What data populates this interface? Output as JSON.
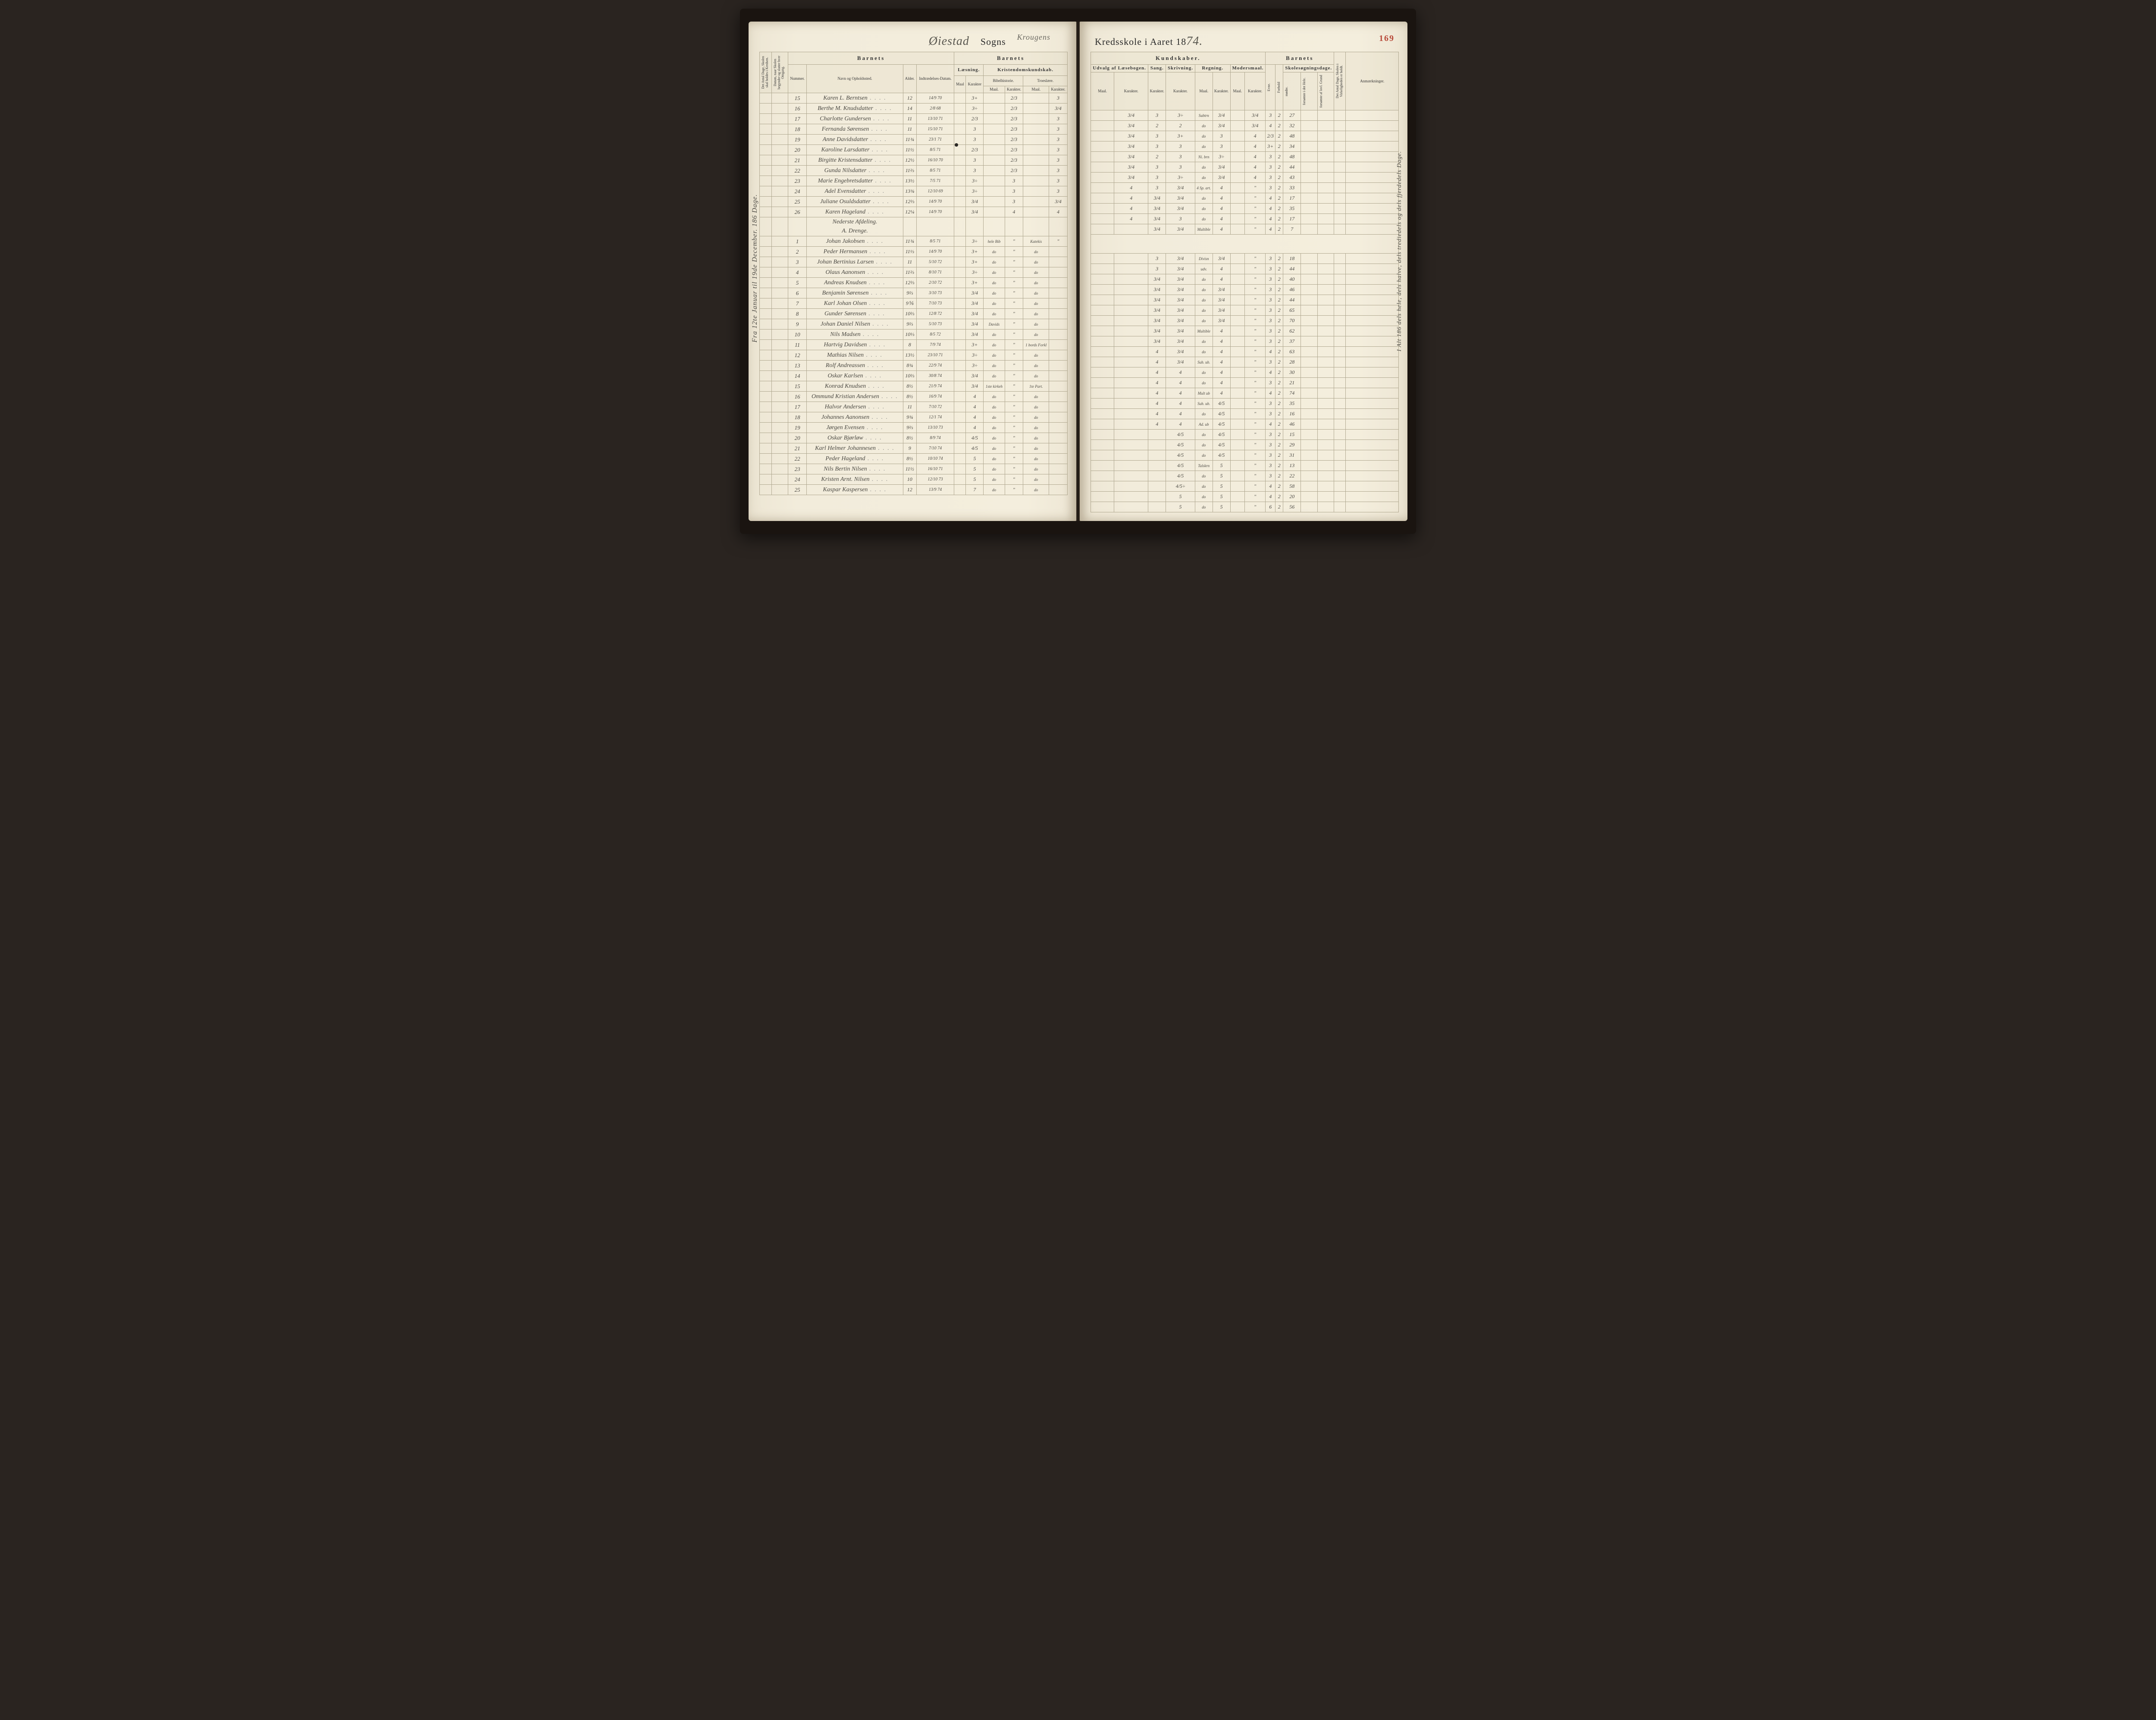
{
  "meta": {
    "title_left_prefix": "Øiestad",
    "title_left_printed": "Sogns",
    "title_superscript": "Krougens",
    "title_right_printed": "Kredsskole i Aaret 18",
    "title_right_year": "74.",
    "page_number": "169",
    "margin_note_left": "Fra 12te Januar til 19de December.   186 Dage.",
    "margin_note_right": "I Alt 186 dels hele, dels halve, dels trediedels og dels fjerdedels Dage."
  },
  "headers": {
    "left_main": "Barnets",
    "left_sub": [
      "Læsning.",
      "Kristendomskundskab."
    ],
    "left_cols": {
      "c1": "Det Antal Dage, Skolen skal holdes i Kredsen.",
      "c2": "Datum, naar Skolen begynder og slutter hver Omgang.",
      "c3": "Nummer.",
      "c4": "Navn og Opholdssted.",
      "c5": "Alder.",
      "c6": "Indtrædelses-Datum.",
      "c7": "Maal",
      "c8": "Karakter",
      "bibel": "Bibelhistorie.",
      "troes": "Troeslære.",
      "c9": "Maal.",
      "c10": "Karakter.",
      "c11": "Maal.",
      "c12": "Karakter."
    },
    "right_main_1": "Kundskaber.",
    "right_main_2": "Barnets",
    "right_sub": [
      "Udvalg af Læsebogen.",
      "Sang.",
      "Skrivning.",
      "Regning.",
      "Modersmaal."
    ],
    "right_cols": {
      "c1": "Maal.",
      "c2": "Karakter.",
      "c3": "Karakter.",
      "c4": "Karakter.",
      "c5": "Maal.",
      "c6": "Karakter.",
      "c7": "Maal.",
      "c8": "Karakter.",
      "evne": "Evne.",
      "forhold": "Forhold",
      "skole": "Skolesøgningsdage.",
      "s1": "mødte.",
      "s2": "forsømte i det Hele.",
      "s3": "forsømte af lovl. Grund",
      "antal": "Det Antal Dage, Skolen i Virkeligheden er holdt.",
      "anm": "Anmærkninger."
    }
  },
  "rows_top": [
    {
      "n": "15",
      "name": "Karen L. Berntsen",
      "age": "12",
      "date": "14/9 70",
      "l1": "3+",
      "l2": "",
      "b1": "2/3",
      "b2": "",
      "t1": "3",
      "u1": "",
      "u2": "3/4",
      "sa": "3",
      "sk": "3÷",
      "r1": "Subtrn",
      "r2": "3/4",
      "m1": "",
      "m2": "3/4",
      "e": "3",
      "f": "2",
      "d": "27"
    },
    {
      "n": "16",
      "name": "Berthe M. Knudsdatter",
      "age": "14",
      "date": "2/8 68",
      "l1": "3÷",
      "l2": "",
      "b1": "2/3",
      "b2": "",
      "t1": "3/4",
      "u1": "",
      "u2": "3/4",
      "sa": "2",
      "sk": "2",
      "r1": "do",
      "r2": "3/4",
      "m1": "",
      "m2": "3/4",
      "e": "4",
      "f": "2",
      "d": "32"
    },
    {
      "n": "17",
      "name": "Charlotte Gundersen",
      "age": "11",
      "date": "13/10 71",
      "l1": "2/3",
      "l2": "",
      "b1": "2/3",
      "b2": "",
      "t1": "3",
      "u1": "",
      "u2": "3/4",
      "sa": "3",
      "sk": "3+",
      "r1": "do",
      "r2": "3",
      "m1": "",
      "m2": "4",
      "e": "2/3",
      "f": "2",
      "d": "48"
    },
    {
      "n": "18",
      "name": "Fernanda Sørensen",
      "age": "11",
      "date": "15/10 71",
      "l1": "3",
      "l2": "",
      "b1": "2/3",
      "b2": "",
      "t1": "3",
      "u1": "",
      "u2": "3/4",
      "sa": "3",
      "sk": "3",
      "r1": "do",
      "r2": "3",
      "m1": "",
      "m2": "4",
      "e": "3+",
      "f": "2",
      "d": "34"
    },
    {
      "n": "19",
      "name": "Anne Davidsdatter",
      "age": "11¾",
      "date": "23/1 71",
      "l1": "3",
      "l2": "",
      "b1": "2/3",
      "b2": "",
      "t1": "3",
      "u1": "",
      "u2": "3/4",
      "sa": "2",
      "sk": "3",
      "r1": "Ni. brn",
      "r2": "3÷",
      "m1": "",
      "m2": "4",
      "e": "3",
      "f": "2",
      "d": "48"
    },
    {
      "n": "20",
      "name": "Karoline Larsdatter",
      "age": "11½",
      "date": "8/5 71",
      "l1": "2/3",
      "l2": "",
      "b1": "2/3",
      "b2": "",
      "t1": "3",
      "u1": "",
      "u2": "3/4",
      "sa": "3",
      "sk": "3",
      "r1": "do",
      "r2": "3/4",
      "m1": "",
      "m2": "4",
      "e": "3",
      "f": "2",
      "d": "44"
    },
    {
      "n": "21",
      "name": "Birgitte Kristensdatter",
      "age": "12½",
      "date": "16/10 70",
      "l1": "3",
      "l2": "",
      "b1": "2/3",
      "b2": "",
      "t1": "3",
      "u1": "",
      "u2": "3/4",
      "sa": "3",
      "sk": "3÷",
      "r1": "do",
      "r2": "3/4",
      "m1": "",
      "m2": "4",
      "e": "3",
      "f": "2",
      "d": "43"
    },
    {
      "n": "22",
      "name": "Gunda Nilsdatter",
      "age": "11⅔",
      "date": "8/5 71",
      "l1": "3",
      "l2": "",
      "b1": "2/3",
      "b2": "",
      "t1": "3",
      "u1": "",
      "u2": "4",
      "sa": "3",
      "sk": "3/4",
      "r1": "4 Sp. art.",
      "r2": "4",
      "m1": "",
      "m2": "\"",
      "e": "3",
      "f": "2",
      "d": "33"
    },
    {
      "n": "23",
      "name": "Marie Engebretsdatter",
      "age": "13½",
      "date": "7/5 71",
      "l1": "3÷",
      "l2": "",
      "b1": "3",
      "b2": "",
      "t1": "3",
      "u1": "",
      "u2": "4",
      "sa": "3/4",
      "sk": "3/4",
      "r1": "do",
      "r2": "4",
      "m1": "",
      "m2": "\"",
      "e": "4",
      "f": "2",
      "d": "17"
    },
    {
      "n": "24",
      "name": "Adel Evensdatter",
      "age": "13¾",
      "date": "12/10 69",
      "l1": "3÷",
      "l2": "",
      "b1": "3",
      "b2": "",
      "t1": "3",
      "u1": "",
      "u2": "4",
      "sa": "3/4",
      "sk": "3/4",
      "r1": "do",
      "r2": "4",
      "m1": "",
      "m2": "\"",
      "e": "4",
      "f": "2",
      "d": "35"
    },
    {
      "n": "25",
      "name": "Juliane Osuldsdatter",
      "age": "12⅔",
      "date": "14/9 70",
      "l1": "3/4",
      "l2": "",
      "b1": "3",
      "b2": "",
      "t1": "3/4",
      "u1": "",
      "u2": "4",
      "sa": "3/4",
      "sk": "3",
      "r1": "do",
      "r2": "4",
      "m1": "",
      "m2": "\"",
      "e": "4",
      "f": "2",
      "d": "17"
    },
    {
      "n": "26",
      "name": "Karen Hageland",
      "age": "12¼",
      "date": "14/9 70",
      "l1": "3/4",
      "l2": "",
      "b1": "4",
      "b2": "",
      "t1": "4",
      "u1": "",
      "u2": "",
      "sa": "3/4",
      "sk": "3/4",
      "r1": "Multible",
      "r2": "4",
      "m1": "",
      "m2": "\"",
      "e": "4",
      "f": "2",
      "d": "7"
    }
  ],
  "section_labels": {
    "a": "Nederste Afdeling.",
    "b": "A. Drenge."
  },
  "rows_bottom": [
    {
      "n": "1",
      "name": "Johan Jakobsen",
      "age": "11¾",
      "date": "8/5 71",
      "l1": "3÷",
      "l2": "hele Bib",
      "b1": "\"",
      "b2": "Katekis",
      "t1": "\"",
      "u1": "",
      "u2": "",
      "sa": "3",
      "sk": "3/4",
      "r1": "Divisn",
      "r2": "3/4",
      "m1": "",
      "m2": "\"",
      "e": "3",
      "f": "2",
      "d": "18"
    },
    {
      "n": "2",
      "name": "Peder Hermansen",
      "age": "11⅓",
      "date": "14/9 70",
      "l1": "3+",
      "l2": "do",
      "b1": "\"",
      "b2": "do",
      "t1": "",
      "u1": "",
      "u2": "",
      "sa": "3",
      "sk": "3/4",
      "r1": "udv.",
      "r2": "4",
      "m1": "",
      "m2": "\"",
      "e": "3",
      "f": "2",
      "d": "44"
    },
    {
      "n": "3",
      "name": "Johan Bertinius Larsen",
      "age": "11",
      "date": "5/10 72",
      "l1": "3+",
      "l2": "do",
      "b1": "\"",
      "b2": "do",
      "t1": "",
      "u1": "",
      "u2": "",
      "sa": "3/4",
      "sk": "3/4",
      "r1": "do",
      "r2": "4",
      "m1": "",
      "m2": "\"",
      "e": "3",
      "f": "2",
      "d": "40"
    },
    {
      "n": "4",
      "name": "Olaus Aanonsen",
      "age": "11⅔",
      "date": "8/10 71",
      "l1": "3÷",
      "l2": "do",
      "b1": "\"",
      "b2": "do",
      "t1": "",
      "u1": "",
      "u2": "",
      "sa": "3/4",
      "sk": "3/4",
      "r1": "do",
      "r2": "3/4",
      "m1": "",
      "m2": "\"",
      "e": "3",
      "f": "2",
      "d": "46"
    },
    {
      "n": "5",
      "name": "Andreas Knudsen",
      "age": "12⅔",
      "date": "2/10 72",
      "l1": "3+",
      "l2": "do",
      "b1": "\"",
      "b2": "do",
      "t1": "",
      "u1": "",
      "u2": "",
      "sa": "3/4",
      "sk": "3/4",
      "r1": "do",
      "r2": "3/4",
      "m1": "",
      "m2": "\"",
      "e": "3",
      "f": "2",
      "d": "44"
    },
    {
      "n": "6",
      "name": "Benjamin Sørensen",
      "age": "9⅔",
      "date": "3/10 73",
      "l1": "3/4",
      "l2": "do",
      "b1": "\"",
      "b2": "do",
      "t1": "",
      "u1": "",
      "u2": "",
      "sa": "3/4",
      "sk": "3/4",
      "r1": "do",
      "r2": "3/4",
      "m1": "",
      "m2": "\"",
      "e": "3",
      "f": "2",
      "d": "65"
    },
    {
      "n": "7",
      "name": "Karl Johan Olsen",
      "age": "9⅚",
      "date": "7/10 73",
      "l1": "3/4",
      "l2": "do",
      "b1": "\"",
      "b2": "do",
      "t1": "",
      "u1": "",
      "u2": "",
      "sa": "3/4",
      "sk": "3/4",
      "r1": "do",
      "r2": "3/4",
      "m1": "",
      "m2": "\"",
      "e": "3",
      "f": "2",
      "d": "70"
    },
    {
      "n": "8",
      "name": "Gunder Sørensen",
      "age": "10⅔",
      "date": "12/8 72",
      "l1": "3/4",
      "l2": "do",
      "b1": "\"",
      "b2": "do",
      "t1": "",
      "u1": "",
      "u2": "",
      "sa": "3/4",
      "sk": "3/4",
      "r1": "Multible",
      "r2": "4",
      "m1": "",
      "m2": "\"",
      "e": "3",
      "f": "2",
      "d": "62"
    },
    {
      "n": "9",
      "name": "Johan Daniel Nilsen",
      "age": "9⅔",
      "date": "5/10 73",
      "l1": "3/4",
      "l2": "Davids",
      "b1": "\"",
      "b2": "do",
      "t1": "",
      "u1": "",
      "u2": "",
      "sa": "3/4",
      "sk": "3/4",
      "r1": "do",
      "r2": "4",
      "m1": "",
      "m2": "\"",
      "e": "3",
      "f": "2",
      "d": "37"
    },
    {
      "n": "10",
      "name": "Nils Madsen",
      "age": "10⅓",
      "date": "8/5 72",
      "l1": "3/4",
      "l2": "do",
      "b1": "\"",
      "b2": "do",
      "t1": "",
      "u1": "",
      "u2": "",
      "sa": "4",
      "sk": "3/4",
      "r1": "do",
      "r2": "4",
      "m1": "",
      "m2": "\"",
      "e": "4",
      "f": "2",
      "d": "63"
    },
    {
      "n": "11",
      "name": "Hartvig Davidsen",
      "age": "8",
      "date": "7/9 74",
      "l1": "3+",
      "l2": "do",
      "b1": "\"",
      "b2": "1 bords Forkl",
      "t1": "",
      "u1": "",
      "u2": "",
      "sa": "4",
      "sk": "3/4",
      "r1": "Sub. ub.",
      "r2": "4",
      "m1": "",
      "m2": "\"",
      "e": "3",
      "f": "2",
      "d": "28"
    },
    {
      "n": "12",
      "name": "Mathias Nilsen",
      "age": "13½",
      "date": "23/10 71",
      "l1": "3÷",
      "l2": "do",
      "b1": "\"",
      "b2": "do",
      "t1": "",
      "u1": "",
      "u2": "",
      "sa": "4",
      "sk": "4",
      "r1": "do",
      "r2": "4",
      "m1": "",
      "m2": "\"",
      "e": "4",
      "f": "2",
      "d": "30"
    },
    {
      "n": "13",
      "name": "Rolf Andreassen",
      "age": "8¾",
      "date": "22/9 74",
      "l1": "3÷",
      "l2": "do",
      "b1": "\"",
      "b2": "do",
      "t1": "",
      "u1": "",
      "u2": "",
      "sa": "4",
      "sk": "4",
      "r1": "do",
      "r2": "4",
      "m1": "",
      "m2": "\"",
      "e": "3",
      "f": "2",
      "d": "21"
    },
    {
      "n": "14",
      "name": "Oskar Karlsen",
      "age": "10⅔",
      "date": "30/8 74",
      "l1": "3/4",
      "l2": "do",
      "b1": "\"",
      "b2": "do",
      "t1": "",
      "u1": "",
      "u2": "",
      "sa": "4",
      "sk": "4",
      "r1": "Mult ub",
      "r2": "4",
      "m1": "",
      "m2": "\"",
      "e": "4",
      "f": "2",
      "d": "74"
    },
    {
      "n": "15",
      "name": "Konrad Knudsen",
      "age": "8½",
      "date": "21/9 74",
      "l1": "3/4",
      "l2": "1ste kirkeh",
      "b1": "\"",
      "b2": "1te Part.",
      "t1": "",
      "u1": "",
      "u2": "",
      "sa": "4",
      "sk": "4",
      "r1": "Sub. ub.",
      "r2": "4/5",
      "m1": "",
      "m2": "\"",
      "e": "3",
      "f": "2",
      "d": "35"
    },
    {
      "n": "16",
      "name": "Ommund Kristian Andersen",
      "age": "8½",
      "date": "16/9 74",
      "l1": "4",
      "l2": "do",
      "b1": "\"",
      "b2": "do",
      "t1": "",
      "u1": "",
      "u2": "",
      "sa": "4",
      "sk": "4",
      "r1": "do",
      "r2": "4/5",
      "m1": "",
      "m2": "\"",
      "e": "3",
      "f": "2",
      "d": "16"
    },
    {
      "n": "17",
      "name": "Halvor Andersen",
      "age": "11",
      "date": "7/10 72",
      "l1": "4",
      "l2": "do",
      "b1": "\"",
      "b2": "do",
      "t1": "",
      "u1": "",
      "u2": "",
      "sa": "4",
      "sk": "4",
      "r1": "Ad. ub",
      "r2": "4/5",
      "m1": "",
      "m2": "\"",
      "e": "4",
      "f": "2",
      "d": "46"
    },
    {
      "n": "18",
      "name": "Johannes Aanonsen",
      "age": "9¾",
      "date": "12/1 74",
      "l1": "4",
      "l2": "do",
      "b1": "\"",
      "b2": "do",
      "t1": "",
      "u1": "",
      "u2": "",
      "sa": "",
      "sk": "4/5",
      "r1": "do",
      "r2": "4/5",
      "m1": "",
      "m2": "\"",
      "e": "3",
      "f": "2",
      "d": "15"
    },
    {
      "n": "19",
      "name": "Jørgen Evensen",
      "age": "9⅔",
      "date": "13/10 73",
      "l1": "4",
      "l2": "do",
      "b1": "\"",
      "b2": "do",
      "t1": "",
      "u1": "",
      "u2": "",
      "sa": "",
      "sk": "4/5",
      "r1": "do",
      "r2": "4/5",
      "m1": "",
      "m2": "\"",
      "e": "3",
      "f": "2",
      "d": "29"
    },
    {
      "n": "20",
      "name": "Oskar Bjørløw",
      "age": "8½",
      "date": "8/9 74",
      "l1": "4/5",
      "l2": "do",
      "b1": "\"",
      "b2": "do",
      "t1": "",
      "u1": "",
      "u2": "",
      "sa": "",
      "sk": "4/5",
      "r1": "do",
      "r2": "4/5",
      "m1": "",
      "m2": "\"",
      "e": "3",
      "f": "2",
      "d": "31"
    },
    {
      "n": "21",
      "name": "Karl Helmer Johannesen",
      "age": "9",
      "date": "7/10 74",
      "l1": "4/5",
      "l2": "do",
      "b1": "\"",
      "b2": "do",
      "t1": "",
      "u1": "",
      "u2": "",
      "sa": "",
      "sk": "4/5",
      "r1": "Talskrn",
      "r2": "5",
      "m1": "",
      "m2": "\"",
      "e": "3",
      "f": "2",
      "d": "13"
    },
    {
      "n": "22",
      "name": "Peder Hageland",
      "age": "8½",
      "date": "10/10 74",
      "l1": "5",
      "l2": "do",
      "b1": "\"",
      "b2": "do",
      "t1": "",
      "u1": "",
      "u2": "",
      "sa": "",
      "sk": "4/5",
      "r1": "do",
      "r2": "5",
      "m1": "",
      "m2": "\"",
      "e": "3",
      "f": "2",
      "d": "22"
    },
    {
      "n": "23",
      "name": "Nils Bertin Nilsen",
      "age": "11½",
      "date": "16/10 71",
      "l1": "5",
      "l2": "do",
      "b1": "\"",
      "b2": "do",
      "t1": "",
      "u1": "",
      "u2": "",
      "sa": "",
      "sk": "4/5÷",
      "r1": "do",
      "r2": "5",
      "m1": "",
      "m2": "\"",
      "e": "4",
      "f": "2",
      "d": "58"
    },
    {
      "n": "24",
      "name": "Kristen Arnt. Nilsen",
      "age": "10",
      "date": "12/10 73",
      "l1": "5",
      "l2": "do",
      "b1": "\"",
      "b2": "do",
      "t1": "",
      "u1": "",
      "u2": "",
      "sa": "",
      "sk": "5",
      "r1": "do",
      "r2": "5",
      "m1": "",
      "m2": "\"",
      "e": "4",
      "f": "2",
      "d": "20"
    },
    {
      "n": "25",
      "name": "Kaspar Kaspersen",
      "age": "12",
      "date": "13/9 74",
      "l1": "7",
      "l2": "do",
      "b1": "\"",
      "b2": "do",
      "t1": "",
      "u1": "",
      "u2": "",
      "sa": "",
      "sk": "5",
      "r1": "do",
      "r2": "5",
      "m1": "",
      "m2": "\"",
      "e": "6",
      "f": "2",
      "d": "56"
    }
  ],
  "colors": {
    "paper": "#f2ecdb",
    "rule": "#b0a890",
    "ink_print": "#2a2a2a",
    "ink_hand": "#4a4842",
    "page_num": "#b84a3a"
  }
}
